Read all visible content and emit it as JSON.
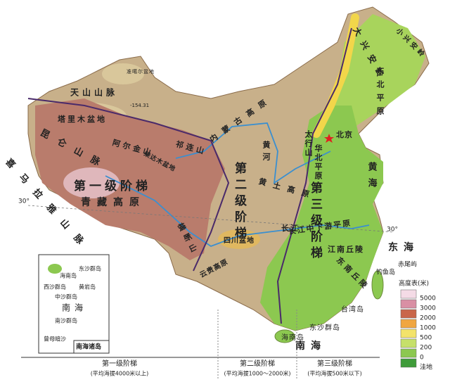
{
  "map": {
    "landforms": [
      "天山山脉",
      "准噶尔盆地",
      "塔里木盆地",
      "昆仑山脉",
      "阿尔金山",
      "柴达木盆地",
      "祁连山",
      "喜马拉雅山脉",
      "青藏高原",
      "横断山",
      "四川盆地",
      "云贵高原",
      "黄土高原",
      "内蒙古高原",
      "大兴安岭",
      "太行山",
      "华北平原",
      "东北平原",
      "长江中下游平原",
      "江南丘陵",
      "东南丘陵",
      "小兴安岭"
    ],
    "rivers": [
      "黄河",
      "长江"
    ],
    "seas": [
      "黄海",
      "东海",
      "南海"
    ],
    "islands": [
      "台湾岛",
      "钓鱼岛",
      "赤尾屿",
      "东沙群岛",
      "海南岛"
    ],
    "capital": "北京",
    "depth_point": "-154.31",
    "latitude": "30°",
    "steps": [
      {
        "name": "第一级阶梯",
        "note": "(平均海拔4000米以上)"
      },
      {
        "name": "第二级阶梯",
        "note": "(平均海拔1000～2000米)"
      },
      {
        "name": "第三级阶梯",
        "note": "(平均海拔500米以下)"
      }
    ],
    "inset": {
      "title": "南海诸岛",
      "labels": [
        "海南岛",
        "东沙群岛",
        "西沙群岛",
        "黄岩岛",
        "中沙群岛",
        "南海",
        "南沙群岛",
        "曾母暗沙"
      ]
    },
    "legend": {
      "title": "高度表(米)",
      "items": [
        {
          "label": "5000",
          "color": "#f4dbe6"
        },
        {
          "label": "3000",
          "color": "#d98fa4"
        },
        {
          "label": "2000",
          "color": "#c9664a"
        },
        {
          "label": "1000",
          "color": "#f0a640"
        },
        {
          "label": "500",
          "color": "#f3e36a"
        },
        {
          "label": "200",
          "color": "#c6e06a"
        },
        {
          "label": "0",
          "color": "#8cc850"
        },
        {
          "label": "洼地",
          "color": "#3f9c3a"
        }
      ]
    }
  }
}
